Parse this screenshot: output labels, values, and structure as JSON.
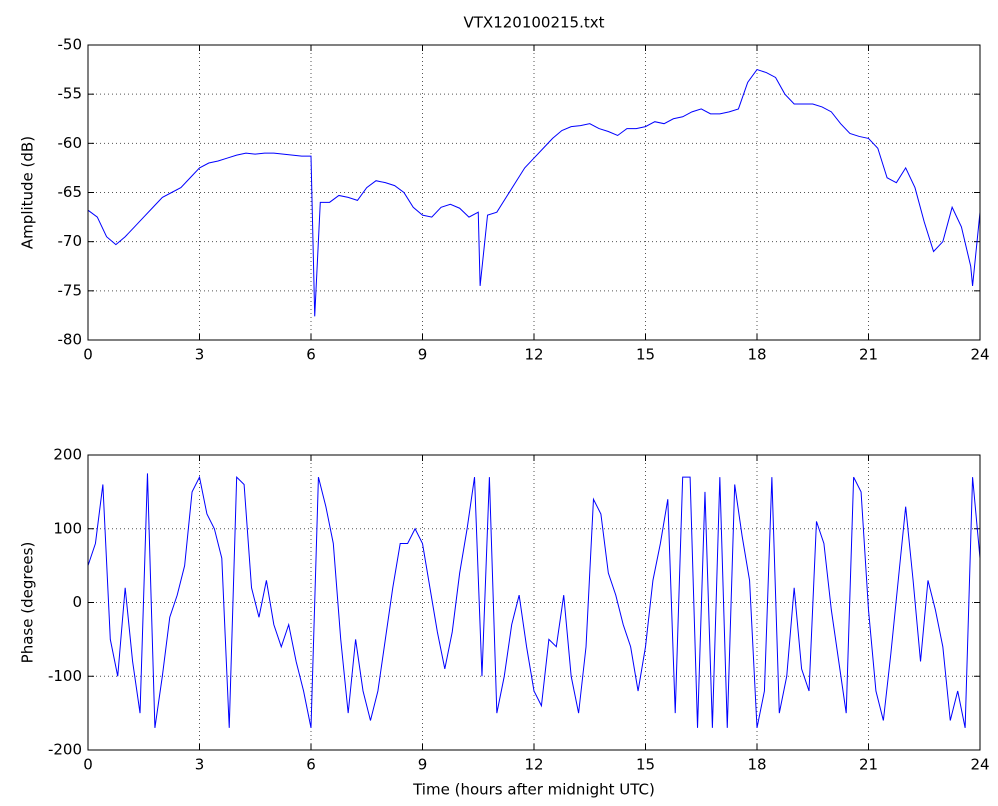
{
  "chart_data": [
    {
      "type": "line",
      "title": "VTX120100215.txt",
      "ylabel": "Amplitude (dB)",
      "x": [
        0,
        0.25,
        0.5,
        0.75,
        1,
        1.25,
        1.5,
        1.75,
        2,
        2.25,
        2.5,
        2.75,
        3,
        3.25,
        3.5,
        3.75,
        4,
        4.25,
        4.5,
        4.75,
        5,
        5.25,
        5.5,
        5.75,
        6,
        6.1,
        6.25,
        6.5,
        6.75,
        7,
        7.25,
        7.5,
        7.75,
        8,
        8.25,
        8.5,
        8.75,
        9,
        9.25,
        9.5,
        9.75,
        10,
        10.25,
        10.5,
        10.55,
        10.75,
        11,
        11.25,
        11.5,
        11.75,
        12,
        12.25,
        12.5,
        12.75,
        13,
        13.25,
        13.5,
        13.75,
        14,
        14.25,
        14.5,
        14.75,
        15,
        15.25,
        15.5,
        15.75,
        16,
        16.25,
        16.5,
        16.75,
        17,
        17.25,
        17.5,
        17.75,
        18,
        18.25,
        18.5,
        18.75,
        19,
        19.25,
        19.5,
        19.75,
        20,
        20.25,
        20.5,
        20.75,
        21,
        21.25,
        21.5,
        21.75,
        22,
        22.25,
        22.5,
        22.75,
        23,
        23.25,
        23.5,
        23.75,
        23.8,
        24
      ],
      "series": [
        {
          "color": "#0000ff",
          "values": [
            -66.8,
            -67.5,
            -69.5,
            -70.3,
            -69.5,
            -68.5,
            -67.5,
            -66.5,
            -65.5,
            -65,
            -64.5,
            -63.5,
            -62.5,
            -62,
            -61.8,
            -61.5,
            -61.2,
            -61,
            -61.1,
            -61,
            -61,
            -61.1,
            -61.2,
            -61.3,
            -61.3,
            -77.6,
            -66,
            -66,
            -65.3,
            -65.5,
            -65.8,
            -64.5,
            -63.8,
            -64,
            -64.3,
            -65,
            -66.5,
            -67.3,
            -67.5,
            -66.5,
            -66.2,
            -66.6,
            -67.5,
            -67,
            -74.5,
            -67.3,
            -67,
            -65.5,
            -64,
            -62.5,
            -61.5,
            -60.5,
            -59.5,
            -58.7,
            -58.3,
            -58.2,
            -58,
            -58.5,
            -58.8,
            -59.2,
            -58.5,
            -58.5,
            -58.3,
            -57.8,
            -58,
            -57.5,
            -57.3,
            -56.8,
            -56.5,
            -57,
            -57,
            -56.8,
            -56.5,
            -53.8,
            -52.5,
            -52.8,
            -53.3,
            -55,
            -56,
            -56,
            -56,
            -56.3,
            -56.8,
            -58,
            -59,
            -59.3,
            -59.5,
            -60.5,
            -63.5,
            -64,
            -62.5,
            -64.5,
            -68,
            -71,
            -70,
            -66.5,
            -68.5,
            -72.5,
            -74.5,
            -67
          ]
        }
      ],
      "xlim": [
        0,
        24
      ],
      "xticks": [
        0,
        3,
        6,
        9,
        12,
        15,
        18,
        21,
        24
      ],
      "ylim": [
        -80,
        -50
      ],
      "yticks": [
        -80,
        -75,
        -70,
        -65,
        -60,
        -55,
        -50
      ],
      "grid": true
    },
    {
      "type": "line",
      "xlabel": "Time (hours after midnight UTC)",
      "ylabel": "Phase (degrees)",
      "x": [
        0,
        0.2,
        0.4,
        0.6,
        0.8,
        1,
        1.2,
        1.4,
        1.6,
        1.8,
        2,
        2.2,
        2.4,
        2.6,
        2.8,
        3,
        3.2,
        3.4,
        3.6,
        3.8,
        4,
        4.2,
        4.4,
        4.6,
        4.8,
        5,
        5.2,
        5.4,
        5.6,
        5.8,
        6,
        6.2,
        6.4,
        6.6,
        6.8,
        7,
        7.2,
        7.4,
        7.6,
        7.8,
        8,
        8.2,
        8.4,
        8.6,
        8.8,
        9,
        9.2,
        9.4,
        9.6,
        9.8,
        10,
        10.2,
        10.4,
        10.6,
        10.8,
        11,
        11.2,
        11.4,
        11.6,
        11.8,
        12,
        12.2,
        12.4,
        12.6,
        12.8,
        13,
        13.2,
        13.4,
        13.6,
        13.8,
        14,
        14.2,
        14.4,
        14.6,
        14.8,
        15,
        15.2,
        15.4,
        15.6,
        15.8,
        16,
        16.2,
        16.4,
        16.6,
        16.8,
        17,
        17.2,
        17.4,
        17.6,
        17.8,
        18,
        18.2,
        18.4,
        18.6,
        18.8,
        19,
        19.2,
        19.4,
        19.6,
        19.8,
        20,
        20.2,
        20.4,
        20.6,
        20.8,
        21,
        21.2,
        21.4,
        21.6,
        21.8,
        22,
        22.2,
        22.4,
        22.6,
        22.8,
        23,
        23.2,
        23.4,
        23.6,
        23.8,
        24
      ],
      "series": [
        {
          "color": "#0000ff",
          "values": [
            50,
            80,
            160,
            -50,
            -100,
            20,
            -80,
            -150,
            175,
            -170,
            -100,
            -20,
            10,
            50,
            150,
            170,
            120,
            100,
            60,
            -170,
            170,
            160,
            20,
            -20,
            30,
            -30,
            -60,
            -30,
            -80,
            -120,
            -170,
            170,
            130,
            80,
            -50,
            -150,
            -50,
            -120,
            -160,
            -120,
            -50,
            20,
            80,
            80,
            100,
            80,
            20,
            -40,
            -90,
            -40,
            40,
            100,
            170,
            -100,
            170,
            -150,
            -100,
            -30,
            10,
            -60,
            -120,
            -140,
            -50,
            -60,
            10,
            -100,
            -150,
            -60,
            140,
            120,
            40,
            10,
            -30,
            -60,
            -120,
            -60,
            30,
            80,
            140,
            -150,
            170,
            170,
            -170,
            150,
            -170,
            170,
            -170,
            160,
            90,
            30,
            -170,
            -120,
            170,
            -150,
            -100,
            20,
            -90,
            -120,
            110,
            80,
            -10,
            -80,
            -150,
            170,
            150,
            -10,
            -120,
            -160,
            -70,
            30,
            130,
            30,
            -80,
            30,
            -10,
            -60,
            -160,
            -120,
            -170,
            170,
            60
          ]
        }
      ],
      "xlim": [
        0,
        24
      ],
      "xticks": [
        0,
        3,
        6,
        9,
        12,
        15,
        18,
        21,
        24
      ],
      "ylim": [
        -200,
        200
      ],
      "yticks": [
        -200,
        -100,
        0,
        100,
        200
      ],
      "grid": true
    }
  ]
}
